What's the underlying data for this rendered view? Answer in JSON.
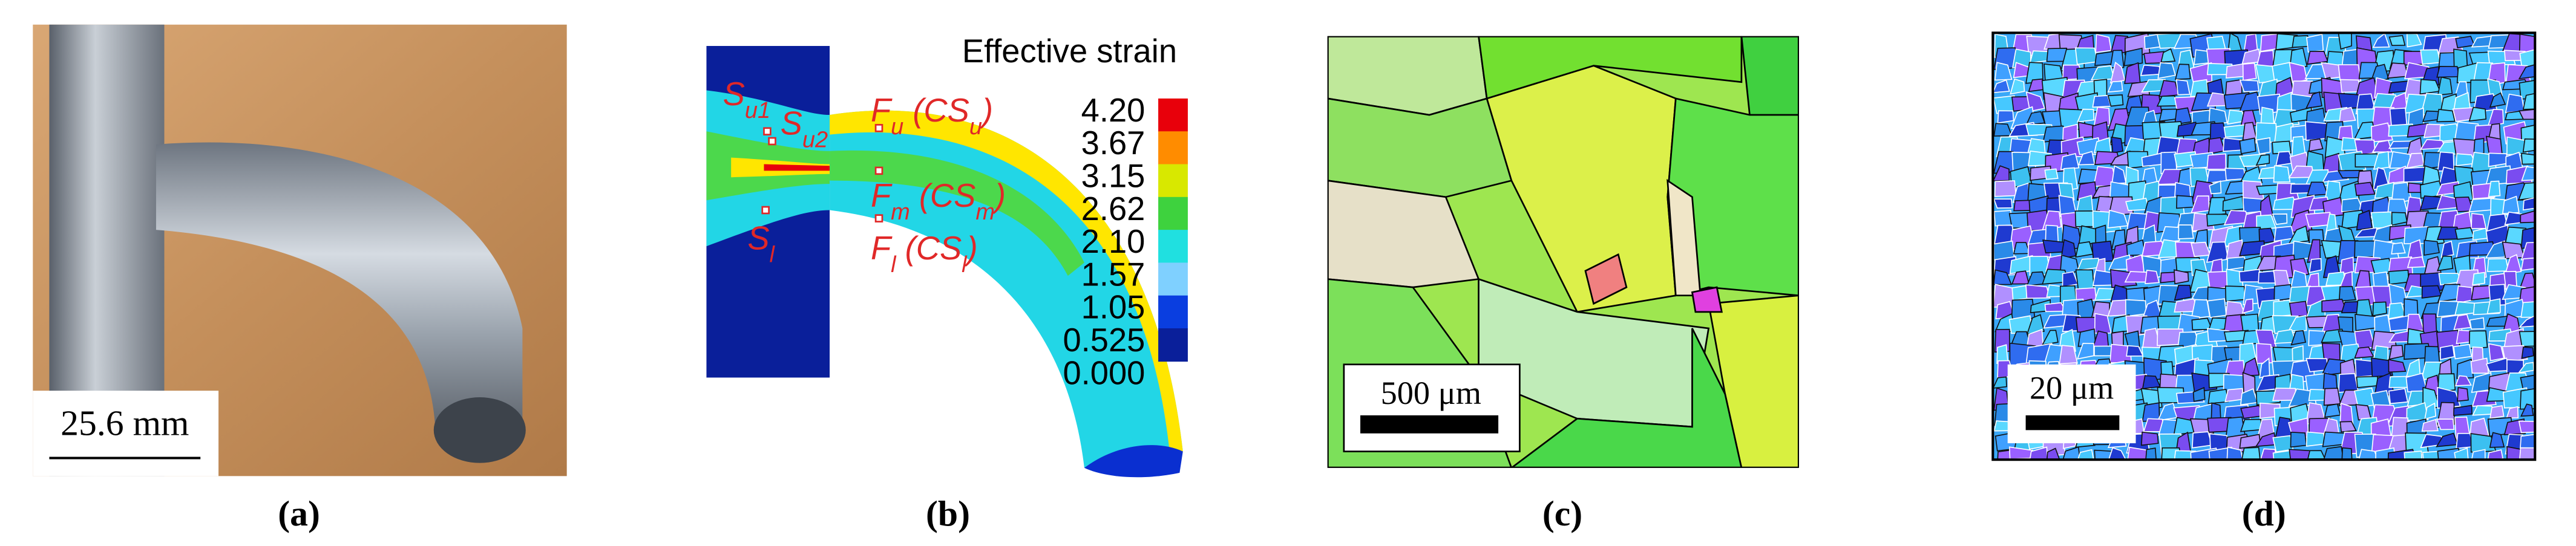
{
  "panels": [
    {
      "label": "(a)",
      "scale_bar": "25.6 mm"
    },
    {
      "label": "(b)",
      "legend": {
        "title": "Effective strain",
        "levels": [
          "4.20",
          "3.67",
          "3.15",
          "2.62",
          "2.10",
          "1.57",
          "1.05",
          "0.525",
          "0.000"
        ]
      },
      "annotations": [
        {
          "parts": [
            {
              "text": "S"
            },
            {
              "text": "u1",
              "sub": true
            }
          ]
        },
        {
          "parts": [
            {
              "text": "S"
            },
            {
              "text": "u2",
              "sub": true
            }
          ]
        },
        {
          "parts": [
            {
              "text": "S"
            },
            {
              "text": "l",
              "sub": true
            }
          ]
        },
        {
          "parts": [
            {
              "text": "F"
            },
            {
              "text": "u",
              "sub": true
            },
            {
              "text": " (CS"
            },
            {
              "text": "u",
              "sub": true
            },
            {
              "text": ")"
            }
          ]
        },
        {
          "parts": [
            {
              "text": "F"
            },
            {
              "text": "m",
              "sub": true
            },
            {
              "text": " (CS"
            },
            {
              "text": "m",
              "sub": true
            },
            {
              "text": ")"
            }
          ]
        },
        {
          "parts": [
            {
              "text": "F"
            },
            {
              "text": "l",
              "sub": true
            },
            {
              "text": " (CS"
            },
            {
              "text": "l",
              "sub": true
            },
            {
              "text": ")"
            }
          ]
        }
      ]
    },
    {
      "label": "(c)",
      "scale_bar": "500 μm"
    },
    {
      "label": "(d)",
      "scale_bar": "20 μm"
    }
  ]
}
